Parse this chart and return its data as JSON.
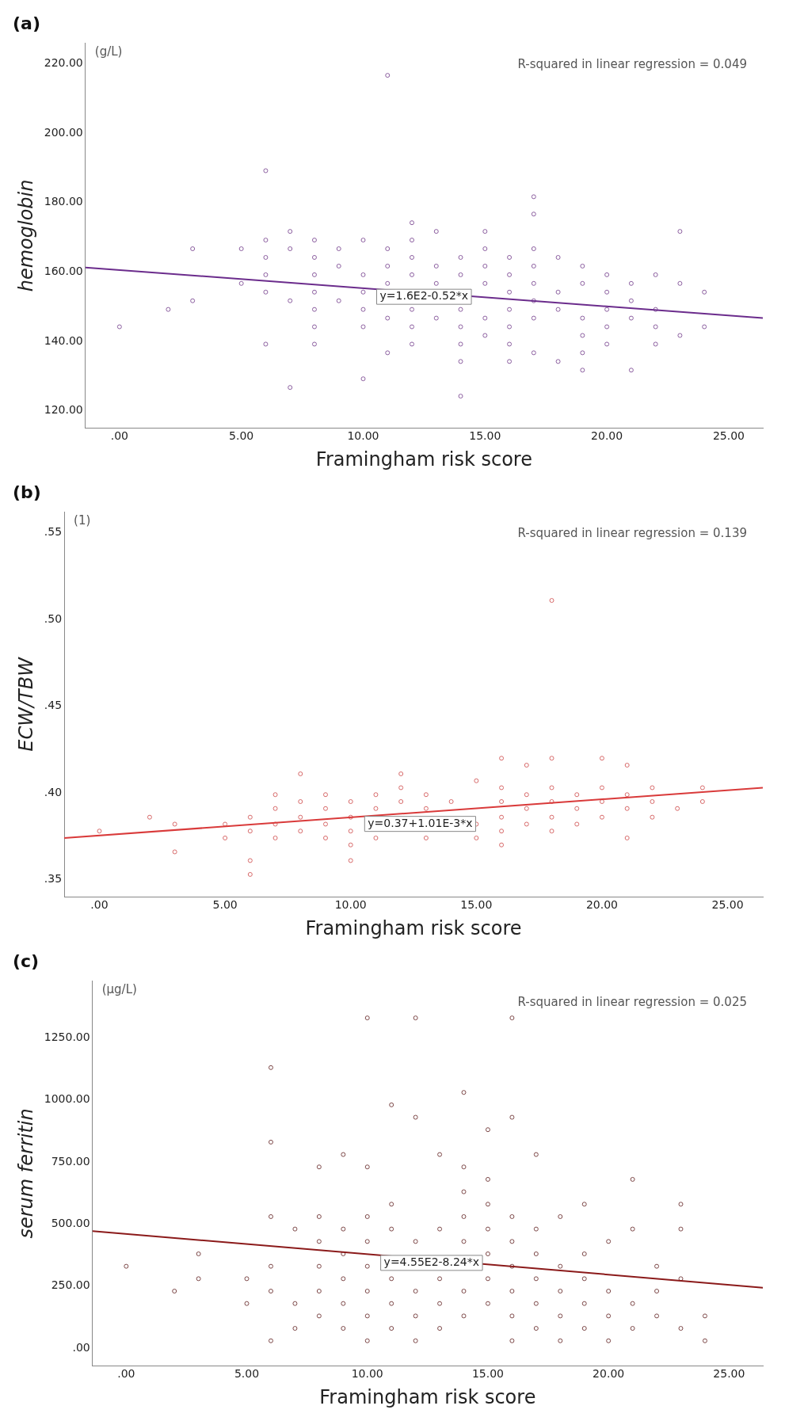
{
  "chart_data": [
    {
      "type": "scatter",
      "title": "(a)",
      "xlabel": "Framingham risk score",
      "ylabel": "hemoglobin",
      "grid": false,
      "legend": false,
      "marker": "circle",
      "xlim": [
        -1.4,
        26.4
      ],
      "xticks": [
        {
          "value": 0,
          "label": ".00"
        },
        {
          "value": 5,
          "label": "5.00"
        },
        {
          "value": 10,
          "label": "10.00"
        },
        {
          "value": 15,
          "label": "15.00"
        },
        {
          "value": 20,
          "label": "20.00"
        },
        {
          "value": 25,
          "label": "25.00"
        }
      ],
      "ylim": [
        115,
        226
      ],
      "yticks": [
        {
          "value": 120,
          "label": "120.00"
        },
        {
          "value": 140,
          "label": "140.00"
        },
        {
          "value": 160,
          "label": "160.00"
        },
        {
          "value": 180,
          "label": "180.00"
        },
        {
          "value": 200,
          "label": "200.00"
        },
        {
          "value": 220,
          "label": "220.00"
        }
      ],
      "annotations": [
        "(g/L)",
        "R-squared in linear regression = 0.049",
        "y=1.6E2-0.52*x"
      ],
      "series": [
        {
          "color": "#8c5fa0",
          "x": [
            0,
            2,
            3,
            3,
            5,
            5,
            6,
            6,
            6,
            6,
            6,
            6,
            7,
            7,
            7,
            7,
            8,
            8,
            8,
            8,
            8,
            8,
            8,
            9,
            9,
            9,
            10,
            10,
            10,
            10,
            10,
            10,
            11,
            11,
            11,
            11,
            11,
            11,
            12,
            12,
            12,
            12,
            12,
            12,
            12,
            13,
            13,
            13,
            13,
            14,
            14,
            14,
            14,
            14,
            14,
            14,
            15,
            15,
            15,
            15,
            15,
            15,
            16,
            16,
            16,
            16,
            16,
            16,
            16,
            17,
            17,
            17,
            17,
            17,
            17,
            17,
            17,
            18,
            18,
            18,
            18,
            19,
            19,
            19,
            19,
            19,
            19,
            20,
            20,
            20,
            20,
            20,
            21,
            21,
            21,
            21,
            22,
            22,
            22,
            22,
            23,
            23,
            23,
            24,
            24
          ],
          "values": [
            144.2,
            149.2,
            166.7,
            151.7,
            166.7,
            156.7,
            189.2,
            169.2,
            164.2,
            159.2,
            154.2,
            139.2,
            171.7,
            166.7,
            151.7,
            126.7,
            169.2,
            164.2,
            159.2,
            154.2,
            149.2,
            144.2,
            139.2,
            166.7,
            161.7,
            151.7,
            169.2,
            159.2,
            154.2,
            149.2,
            144.2,
            129.2,
            216.7,
            166.7,
            161.7,
            156.7,
            146.7,
            136.7,
            174.2,
            169.2,
            164.2,
            159.2,
            149.2,
            144.2,
            139.2,
            171.7,
            161.7,
            156.7,
            146.7,
            164.2,
            159.2,
            149.2,
            144.2,
            139.2,
            134.2,
            124.2,
            171.7,
            166.7,
            161.7,
            156.7,
            146.7,
            141.7,
            164.2,
            159.2,
            154.2,
            149.2,
            144.2,
            139.2,
            134.2,
            181.7,
            176.7,
            166.7,
            161.7,
            156.7,
            151.7,
            146.7,
            136.7,
            164.2,
            154.2,
            149.2,
            134.2,
            161.7,
            156.7,
            146.7,
            141.7,
            136.7,
            131.7,
            159.2,
            154.2,
            149.2,
            144.2,
            139.2,
            156.7,
            151.7,
            146.7,
            131.7,
            159.2,
            149.2,
            144.2,
            139.2,
            171.7,
            156.7,
            141.7,
            154.2,
            144.2
          ]
        },
        {
          "type": "line",
          "color": "#6b2c8c",
          "marker": "none",
          "x": [
            -1.4,
            26.4
          ],
          "values": [
            161.3,
            146.7
          ]
        }
      ]
    },
    {
      "type": "scatter",
      "title": "(b)",
      "xlabel": "Framingham risk score",
      "ylabel": "ECW/TBW",
      "grid": false,
      "legend": false,
      "marker": "circle",
      "xlim": [
        -1.4,
        26.4
      ],
      "xticks": [
        {
          "value": 0,
          "label": ".00"
        },
        {
          "value": 5,
          "label": "5.00"
        },
        {
          "value": 10,
          "label": "10.00"
        },
        {
          "value": 15,
          "label": "15.00"
        },
        {
          "value": 20,
          "label": "20.00"
        },
        {
          "value": 25,
          "label": "25.00"
        }
      ],
      "ylim": [
        0.34,
        0.562
      ],
      "yticks": [
        {
          "value": 0.35,
          "label": ".35"
        },
        {
          "value": 0.4,
          "label": ".40"
        },
        {
          "value": 0.45,
          "label": ".45"
        },
        {
          "value": 0.5,
          "label": ".50"
        },
        {
          "value": 0.55,
          "label": ".55"
        }
      ],
      "annotations": [
        "(1)",
        "R-squared in linear regression = 0.139",
        "y=0.37+1.01E-3*x"
      ],
      "series": [
        {
          "color": "#d86a6a",
          "x": [
            0,
            2,
            3,
            3,
            5,
            5,
            6,
            6,
            6,
            6,
            7,
            7,
            7,
            7,
            8,
            8,
            8,
            8,
            9,
            9,
            9,
            9,
            10,
            10,
            10,
            10,
            10,
            11,
            11,
            11,
            12,
            12,
            12,
            13,
            13,
            13,
            14,
            15,
            15,
            15,
            16,
            16,
            16,
            16,
            16,
            16,
            17,
            17,
            17,
            17,
            18,
            18,
            18,
            18,
            18,
            18,
            19,
            19,
            19,
            20,
            20,
            20,
            20,
            21,
            21,
            21,
            21,
            22,
            22,
            22,
            23,
            24,
            24
          ],
          "values": [
            0.378,
            0.386,
            0.382,
            0.366,
            0.382,
            0.374,
            0.386,
            0.378,
            0.361,
            0.353,
            0.399,
            0.391,
            0.382,
            0.374,
            0.411,
            0.395,
            0.386,
            0.378,
            0.399,
            0.391,
            0.382,
            0.374,
            0.395,
            0.386,
            0.378,
            0.37,
            0.361,
            0.399,
            0.391,
            0.374,
            0.411,
            0.403,
            0.395,
            0.399,
            0.391,
            0.374,
            0.395,
            0.407,
            0.382,
            0.374,
            0.42,
            0.403,
            0.395,
            0.386,
            0.378,
            0.37,
            0.416,
            0.399,
            0.391,
            0.382,
            0.511,
            0.42,
            0.403,
            0.395,
            0.386,
            0.378,
            0.399,
            0.391,
            0.382,
            0.42,
            0.403,
            0.395,
            0.386,
            0.416,
            0.399,
            0.391,
            0.374,
            0.403,
            0.395,
            0.386,
            0.391,
            0.403,
            0.395
          ]
        },
        {
          "type": "line",
          "color": "#d93a3a",
          "marker": "none",
          "x": [
            -1.4,
            26.4
          ],
          "values": [
            0.374,
            0.403
          ]
        }
      ]
    },
    {
      "type": "scatter",
      "title": "(c)",
      "xlabel": "Framingham risk score",
      "ylabel": "serum ferritin",
      "grid": false,
      "legend": false,
      "marker": "circle",
      "xlim": [
        -1.4,
        26.4
      ],
      "xticks": [
        {
          "value": 0,
          "label": ".00"
        },
        {
          "value": 5,
          "label": "5.00"
        },
        {
          "value": 10,
          "label": "10.00"
        },
        {
          "value": 15,
          "label": "15.00"
        },
        {
          "value": 20,
          "label": "20.00"
        },
        {
          "value": 25,
          "label": "25.00"
        }
      ],
      "ylim": [
        -71,
        1479
      ],
      "yticks": [
        {
          "value": 0,
          "label": ".00"
        },
        {
          "value": 250,
          "label": "250.00"
        },
        {
          "value": 500,
          "label": "500.00"
        },
        {
          "value": 750,
          "label": "750.00"
        },
        {
          "value": 1000,
          "label": "1000.00"
        },
        {
          "value": 1250,
          "label": "1250.00"
        }
      ],
      "annotations": [
        "(µg/L)",
        "R-squared in linear regression = 0.025",
        "y=4.55E2-8.24*x"
      ],
      "series": [
        {
          "color": "#7d4848",
          "x": [
            0,
            2,
            3,
            3,
            5,
            5,
            6,
            6,
            6,
            6,
            6,
            6,
            7,
            7,
            7,
            8,
            8,
            8,
            8,
            8,
            8,
            9,
            9,
            9,
            9,
            9,
            9,
            10,
            10,
            10,
            10,
            10,
            10,
            10,
            10,
            11,
            11,
            11,
            11,
            11,
            11,
            12,
            12,
            12,
            12,
            12,
            12,
            13,
            13,
            13,
            13,
            13,
            14,
            14,
            14,
            14,
            14,
            14,
            14,
            15,
            15,
            15,
            15,
            15,
            15,
            15,
            16,
            16,
            16,
            16,
            16,
            16,
            16,
            16,
            17,
            17,
            17,
            17,
            17,
            17,
            18,
            18,
            18,
            18,
            18,
            19,
            19,
            19,
            19,
            19,
            20,
            20,
            20,
            20,
            21,
            21,
            21,
            21,
            22,
            22,
            22,
            23,
            23,
            23,
            23,
            24,
            24
          ],
          "values": [
            330,
            230,
            380,
            280,
            280,
            180,
            1130,
            830,
            530,
            330,
            230,
            30,
            480,
            180,
            80,
            730,
            530,
            430,
            330,
            230,
            130,
            780,
            480,
            380,
            280,
            180,
            80,
            1330,
            730,
            530,
            430,
            330,
            230,
            130,
            30,
            980,
            580,
            480,
            280,
            180,
            80,
            1330,
            930,
            430,
            230,
            130,
            30,
            780,
            480,
            280,
            180,
            80,
            1030,
            730,
            630,
            530,
            430,
            230,
            130,
            880,
            680,
            580,
            480,
            380,
            280,
            180,
            1330,
            930,
            530,
            430,
            330,
            230,
            130,
            30,
            780,
            480,
            380,
            280,
            180,
            80,
            530,
            330,
            230,
            130,
            30,
            580,
            380,
            280,
            180,
            80,
            430,
            230,
            130,
            30,
            680,
            480,
            180,
            80,
            330,
            230,
            130,
            580,
            480,
            280,
            80,
            130,
            30
          ]
        },
        {
          "type": "line",
          "color": "#8b1a1a",
          "marker": "none",
          "x": [
            -1.4,
            26.4
          ],
          "values": [
            472,
            244
          ]
        }
      ]
    }
  ]
}
